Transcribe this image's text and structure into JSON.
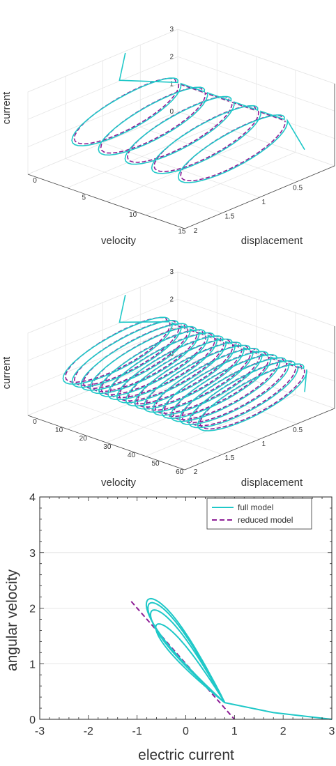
{
  "colors": {
    "full": "#1FC8C8",
    "reduced": "#8E1E96",
    "axis": "#262626",
    "grid": "#e6e6e6"
  },
  "chart_data": [
    {
      "type": "line3d",
      "xlabel": "velocity",
      "ylabel": "displacement",
      "zlabel": "current",
      "xticks": [
        "0.5",
        "1",
        "1.5",
        "2"
      ],
      "yticks": [
        "0",
        "5",
        "10",
        "15"
      ],
      "zticks": [
        "0",
        "1",
        "2",
        "3"
      ],
      "xlim": [
        0,
        2.2
      ],
      "ylim": [
        0,
        16
      ],
      "zlim": [
        0,
        3
      ],
      "loops": 5,
      "series": [
        {
          "name": "full model",
          "color": "#1FC8C8",
          "style": "solid"
        },
        {
          "name": "reduced model",
          "color": "#8E1E96",
          "style": "dashed"
        }
      ]
    },
    {
      "type": "line3d",
      "xlabel": "velocity",
      "ylabel": "displacement",
      "zlabel": "current",
      "xticks": [
        "0.5",
        "1",
        "1.5",
        "2"
      ],
      "yticks": [
        "0",
        "10",
        "20",
        "30",
        "40",
        "50",
        "60"
      ],
      "zticks": [
        "0",
        "1",
        "2",
        "3"
      ],
      "xlim": [
        0,
        2.2
      ],
      "ylim": [
        0,
        65
      ],
      "zlim": [
        0,
        3
      ],
      "loops": 16,
      "series": [
        {
          "name": "full model",
          "color": "#1FC8C8",
          "style": "solid"
        },
        {
          "name": "reduced model",
          "color": "#8E1E96",
          "style": "dashed"
        }
      ]
    },
    {
      "type": "line",
      "xlabel": "electric current",
      "ylabel": "angular velocity",
      "xlim": [
        -3,
        3
      ],
      "ylim": [
        0,
        4
      ],
      "xticks": [
        "-3",
        "-2",
        "-1",
        "0",
        "1",
        "2",
        "3"
      ],
      "yticks": [
        "0",
        "1",
        "2",
        "3",
        "4"
      ],
      "grid": true,
      "legend_position": "top-right",
      "series": [
        {
          "name": "full model",
          "color": "#1FC8C8",
          "style": "solid",
          "start": [
            3.0,
            0.0
          ],
          "knee": [
            0.8,
            0.3
          ],
          "loops": [
            {
              "tip_current": -0.6,
              "tip_velocity": 1.7,
              "width": 0.22
            },
            {
              "tip_current": -0.7,
              "tip_velocity": 1.95,
              "width": 0.26
            },
            {
              "tip_current": -0.75,
              "tip_velocity": 2.08,
              "width": 0.28
            },
            {
              "tip_current": -0.78,
              "tip_velocity": 2.15,
              "width": 0.3
            }
          ]
        },
        {
          "name": "reduced model",
          "color": "#8E1E96",
          "style": "dashed",
          "x": [
            -1.12,
            1.0
          ],
          "y": [
            2.12,
            0.0
          ]
        }
      ]
    }
  ]
}
